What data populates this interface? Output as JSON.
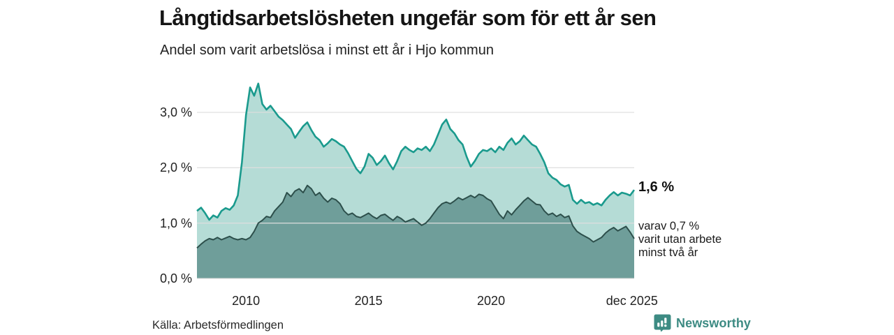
{
  "header": {
    "title": "Långtidsarbetslösheten ungefär som för ett år sen",
    "subtitle": "Andel som varit arbetslösa i minst ett år i Hjo kommun"
  },
  "annotations": {
    "total_end_label": "1,6 %",
    "subset_lines": [
      "varav 0,7 %",
      "varit utan arbete",
      "minst två år"
    ]
  },
  "footer": {
    "source": "Källa: Arbetsförmedlingen",
    "brand": "Newsworthy"
  },
  "colors": {
    "total_line": "#1a9a8d",
    "total_fill": "#b5dcd6",
    "subset_line": "#2d4f4b",
    "subset_fill": "#6f9e9a",
    "gridline": "#dedede",
    "brand_teal": "#3d8b83"
  },
  "chart_data": {
    "type": "area",
    "title": "Långtidsarbetslösheten ungefär som för ett år sen",
    "subtitle": "Andel som varit arbetslösa i minst ett år i Hjo kommun",
    "unit": "%",
    "x_start_year": 2008.0,
    "x_step_years": 0.1666667,
    "xlim": [
      2008.0,
      2025.84
    ],
    "ylim": [
      0,
      3.6
    ],
    "grid": true,
    "yticks": [
      {
        "v": 0,
        "label": "0,0 %"
      },
      {
        "v": 1,
        "label": "1,0 %"
      },
      {
        "v": 2,
        "label": "2,0 %"
      },
      {
        "v": 3,
        "label": "3,0 %"
      }
    ],
    "xticks": [
      {
        "t": 2010.0,
        "label": "2010"
      },
      {
        "t": 2015.0,
        "label": "2015"
      },
      {
        "t": 2020.0,
        "label": "2020"
      },
      {
        "t": 2025.75,
        "label": "dec 2025"
      }
    ],
    "series": [
      {
        "name": "Arbetslösa minst ett år",
        "end_value": 1.6,
        "values": [
          1.22,
          1.28,
          1.18,
          1.06,
          1.14,
          1.1,
          1.22,
          1.27,
          1.24,
          1.32,
          1.5,
          2.1,
          2.95,
          3.45,
          3.3,
          3.52,
          3.15,
          3.05,
          3.12,
          3.02,
          2.92,
          2.86,
          2.78,
          2.7,
          2.54,
          2.65,
          2.75,
          2.82,
          2.68,
          2.56,
          2.5,
          2.38,
          2.44,
          2.52,
          2.48,
          2.42,
          2.38,
          2.26,
          2.12,
          1.98,
          1.9,
          2.02,
          2.25,
          2.18,
          2.05,
          2.12,
          2.22,
          2.08,
          1.97,
          2.12,
          2.3,
          2.38,
          2.32,
          2.28,
          2.35,
          2.32,
          2.38,
          2.3,
          2.42,
          2.6,
          2.78,
          2.87,
          2.7,
          2.62,
          2.5,
          2.42,
          2.2,
          2.02,
          2.12,
          2.25,
          2.32,
          2.3,
          2.35,
          2.28,
          2.38,
          2.32,
          2.45,
          2.53,
          2.42,
          2.48,
          2.58,
          2.5,
          2.42,
          2.38,
          2.25,
          2.1,
          1.9,
          1.82,
          1.78,
          1.7,
          1.66,
          1.69,
          1.42,
          1.35,
          1.42,
          1.36,
          1.38,
          1.33,
          1.36,
          1.32,
          1.42,
          1.5,
          1.56,
          1.5,
          1.55,
          1.53,
          1.5,
          1.6
        ]
      },
      {
        "name": "Arbetslösa minst två år",
        "end_value": 0.7,
        "values": [
          0.55,
          0.62,
          0.68,
          0.72,
          0.7,
          0.74,
          0.7,
          0.73,
          0.76,
          0.72,
          0.7,
          0.72,
          0.7,
          0.74,
          0.85,
          1.0,
          1.05,
          1.12,
          1.1,
          1.22,
          1.3,
          1.38,
          1.55,
          1.48,
          1.58,
          1.62,
          1.55,
          1.68,
          1.62,
          1.5,
          1.55,
          1.45,
          1.38,
          1.45,
          1.42,
          1.35,
          1.22,
          1.15,
          1.18,
          1.12,
          1.1,
          1.14,
          1.18,
          1.12,
          1.08,
          1.14,
          1.16,
          1.1,
          1.05,
          1.12,
          1.08,
          1.02,
          1.05,
          1.08,
          1.02,
          0.96,
          1.0,
          1.08,
          1.18,
          1.28,
          1.35,
          1.38,
          1.35,
          1.4,
          1.46,
          1.42,
          1.46,
          1.5,
          1.46,
          1.52,
          1.5,
          1.44,
          1.4,
          1.28,
          1.16,
          1.08,
          1.22,
          1.15,
          1.24,
          1.32,
          1.4,
          1.46,
          1.4,
          1.34,
          1.33,
          1.22,
          1.15,
          1.18,
          1.12,
          1.16,
          1.1,
          1.13,
          0.95,
          0.85,
          0.8,
          0.76,
          0.72,
          0.66,
          0.7,
          0.74,
          0.82,
          0.88,
          0.92,
          0.86,
          0.9,
          0.94,
          0.84,
          0.72
        ]
      }
    ]
  }
}
